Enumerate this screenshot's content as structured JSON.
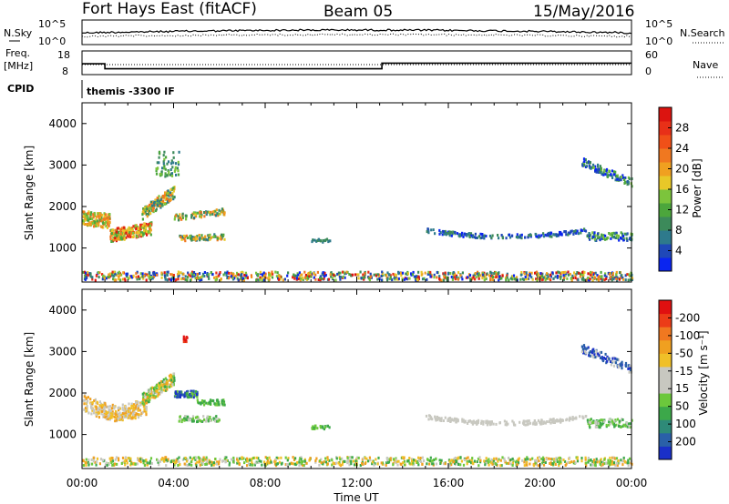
{
  "header": {
    "title": "Fort Hays East (fitACF)",
    "beam": "Beam 05",
    "date": "15/May/2016"
  },
  "summary": {
    "nsky_label": "N.Sky",
    "nsky_ticks": [
      "10^5",
      "10^0"
    ],
    "nsearch_label": "N.Search",
    "nsearch_ticks": [
      "10^5",
      "10^0"
    ],
    "freq_label": "Freq.",
    "freq_unit": "[MHz]",
    "freq_ticks": [
      "18",
      "8"
    ],
    "nave_label": "Nave",
    "nave_ticks": [
      "60",
      "0"
    ],
    "cpid_label": "CPID",
    "cpid_text": "themis -3300 IF",
    "freq_steps": [
      {
        "from": 0,
        "to": 1.0,
        "value": 12.3
      },
      {
        "from": 1.0,
        "to": 13.1,
        "value": 9.9
      },
      {
        "from": 13.1,
        "to": 24,
        "value": 12.6
      }
    ]
  },
  "chart_data": [
    {
      "type": "heatmap",
      "parameter": "Power",
      "ylabel": "Slant Range [km]",
      "xlabel": "Time UT",
      "ylim": [
        180,
        4500
      ],
      "xlim": [
        0,
        24
      ],
      "x_ticks": [
        "00:00",
        "04:00",
        "08:00",
        "12:00",
        "16:00",
        "20:00",
        "00:00"
      ],
      "y_ticks": [
        "1000",
        "2000",
        "3000",
        "4000"
      ],
      "colorbar": {
        "label": "Power [dB]",
        "ticks": [
          "4",
          "8",
          "12",
          "16",
          "20",
          "24",
          "28"
        ],
        "colors": [
          "#0a25f0",
          "#1f48b8",
          "#2e7a8c",
          "#3c8a5a",
          "#4ca63c",
          "#7cc43c",
          "#e8c828",
          "#f0a020",
          "#f07820",
          "#f05018",
          "#e83018",
          "#dc1410"
        ]
      }
    },
    {
      "type": "heatmap",
      "parameter": "Velocity",
      "ylabel": "Slant Range [km]",
      "xlabel": "Time UT",
      "ylim": [
        180,
        4500
      ],
      "xlim": [
        0,
        24
      ],
      "x_ticks": [
        "00:00",
        "04:00",
        "08:00",
        "12:00",
        "16:00",
        "20:00",
        "00:00"
      ],
      "y_ticks": [
        "1000",
        "2000",
        "3000",
        "4000"
      ],
      "colorbar": {
        "label": "Velocity [m s⁻¹]",
        "ticks": [
          "200",
          "100",
          "50",
          "15",
          "-15",
          "-50",
          "-100",
          "-200"
        ],
        "colors": [
          "#1a30c8",
          "#2a60a8",
          "#2e8a78",
          "#3ca84a",
          "#6cc83c",
          "#c8c8c0",
          "#c8c8c0",
          "#f0c028",
          "#f0a020",
          "#f07820",
          "#ec3c18",
          "#e01010"
        ]
      }
    }
  ]
}
